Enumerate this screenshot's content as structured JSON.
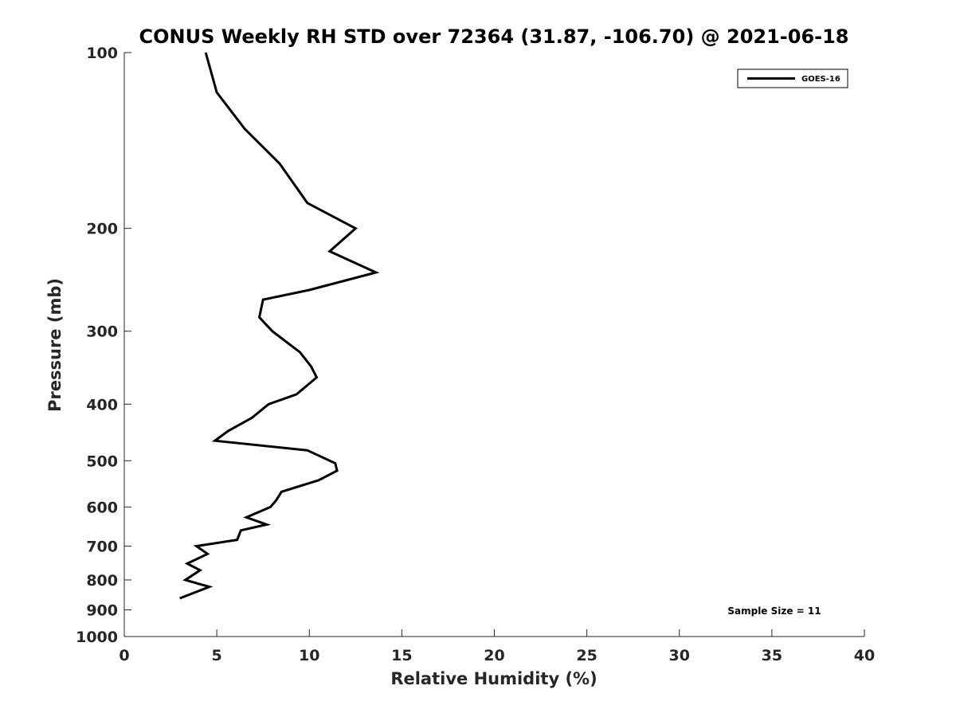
{
  "chart_data": {
    "type": "line",
    "title": "CONUS Weekly RH STD over 72364 (31.87, -106.70) @ 2021-06-18",
    "xlabel": "Relative Humidity (%)",
    "ylabel": "Pressure (mb)",
    "xlim": [
      0,
      40
    ],
    "ylim": [
      100,
      1000
    ],
    "yscale": "log",
    "yreversed": true,
    "grid": false,
    "legend_position": "top-right",
    "x_ticks": [
      0,
      5,
      10,
      15,
      20,
      25,
      30,
      35,
      40
    ],
    "x_tick_labels": [
      "0",
      "5",
      "10",
      "15",
      "20",
      "25",
      "30",
      "35",
      "40"
    ],
    "y_ticks": [
      100,
      200,
      300,
      400,
      500,
      600,
      700,
      800,
      900,
      1000
    ],
    "y_tick_labels": [
      "100",
      "200",
      "300",
      "400",
      "500",
      "600",
      "700",
      "800",
      "900",
      "1000"
    ],
    "series": [
      {
        "name": "GOES-16",
        "color": "#000000",
        "x": [
          4.4,
          5.0,
          6.5,
          8.4,
          9.9,
          12.5,
          11.1,
          13.6,
          10.0,
          7.5,
          7.3,
          8.0,
          9.5,
          10.1,
          10.4,
          9.3,
          7.8,
          6.9,
          5.6,
          4.9,
          9.9,
          11.4,
          11.5,
          10.5,
          8.5,
          8.2,
          7.9,
          6.6,
          7.7,
          6.3,
          6.1,
          3.9,
          4.5,
          3.4,
          4.1,
          3.3,
          4.6,
          3.0
        ],
        "y": [
          100,
          117,
          135,
          155,
          181,
          200,
          219,
          238,
          255,
          265,
          284,
          300,
          326,
          345,
          360,
          385,
          400,
          422,
          445,
          462,
          480,
          505,
          520,
          540,
          565,
          585,
          600,
          625,
          643,
          658,
          683,
          700,
          722,
          750,
          770,
          800,
          822,
          860
        ]
      }
    ],
    "annotations": [
      "Sample Size = 11"
    ]
  }
}
